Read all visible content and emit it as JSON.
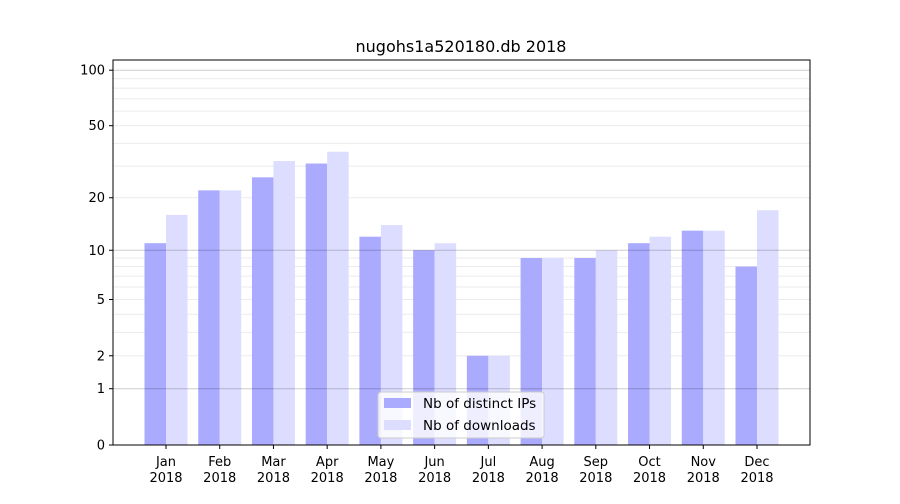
{
  "chart_data": {
    "type": "bar",
    "title": "nugohs1a520180.db 2018",
    "xlabel": "",
    "ylabel": "",
    "yscale": "symlog (log10(v+1))",
    "ylim": [
      0,
      113
    ],
    "yticks": [
      0,
      1,
      2,
      5,
      10,
      20,
      50,
      100
    ],
    "grid": true,
    "legend_position": "bottom-center",
    "categories": [
      "Jan\n2018",
      "Feb\n2018",
      "Mar\n2018",
      "Apr\n2018",
      "May\n2018",
      "Jun\n2018",
      "Jul\n2018",
      "Aug\n2018",
      "Sep\n2018",
      "Oct\n2018",
      "Nov\n2018",
      "Dec\n2018"
    ],
    "series": [
      {
        "name": "Nb of distinct IPs",
        "color": "#aaaaff",
        "values": [
          11,
          22,
          26,
          31,
          12,
          10,
          2,
          9,
          9,
          11,
          13,
          8
        ]
      },
      {
        "name": "Nb of downloads",
        "color": "#ddddff",
        "values": [
          16,
          22,
          32,
          36,
          14,
          11,
          2,
          9,
          10,
          12,
          13,
          17
        ]
      }
    ]
  }
}
